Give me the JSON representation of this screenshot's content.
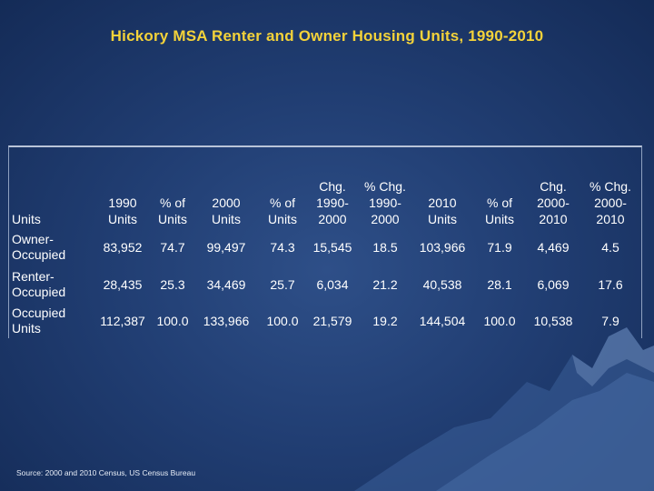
{
  "title": "Hickory MSA Renter and Owner Housing Units, 1990-2010",
  "columns": [
    "Units",
    "1990 Units",
    "% of Units",
    "2000 Units",
    "% of Units",
    "Chg. 1990-2000",
    "% Chg. 1990-2000",
    "2010 Units",
    "% of Units",
    "Chg. 2000-2010",
    "% Chg. 2000-2010"
  ],
  "rows": [
    [
      "Owner-Occupied",
      "83,952",
      "74.7",
      "99,497",
      "74.3",
      "15,545",
      "18.5",
      "103,966",
      "71.9",
      "4,469",
      "4.5"
    ],
    [
      "Renter-Occupied",
      "28,435",
      "25.3",
      "34,469",
      "25.7",
      "6,034",
      "21.2",
      "40,538",
      "28.1",
      "6,069",
      "17.6"
    ],
    [
      "Occupied Units",
      "112,387",
      "100.0",
      "133,966",
      "100.0",
      "21,579",
      "19.2",
      "144,504",
      "100.0",
      "10,538",
      "7.9"
    ]
  ],
  "source": "Source: 2000 and 2010 Census, US Census Bureau",
  "colors": {
    "title": "#f3d23a",
    "background": "#213e73",
    "text": "#ffffff"
  }
}
